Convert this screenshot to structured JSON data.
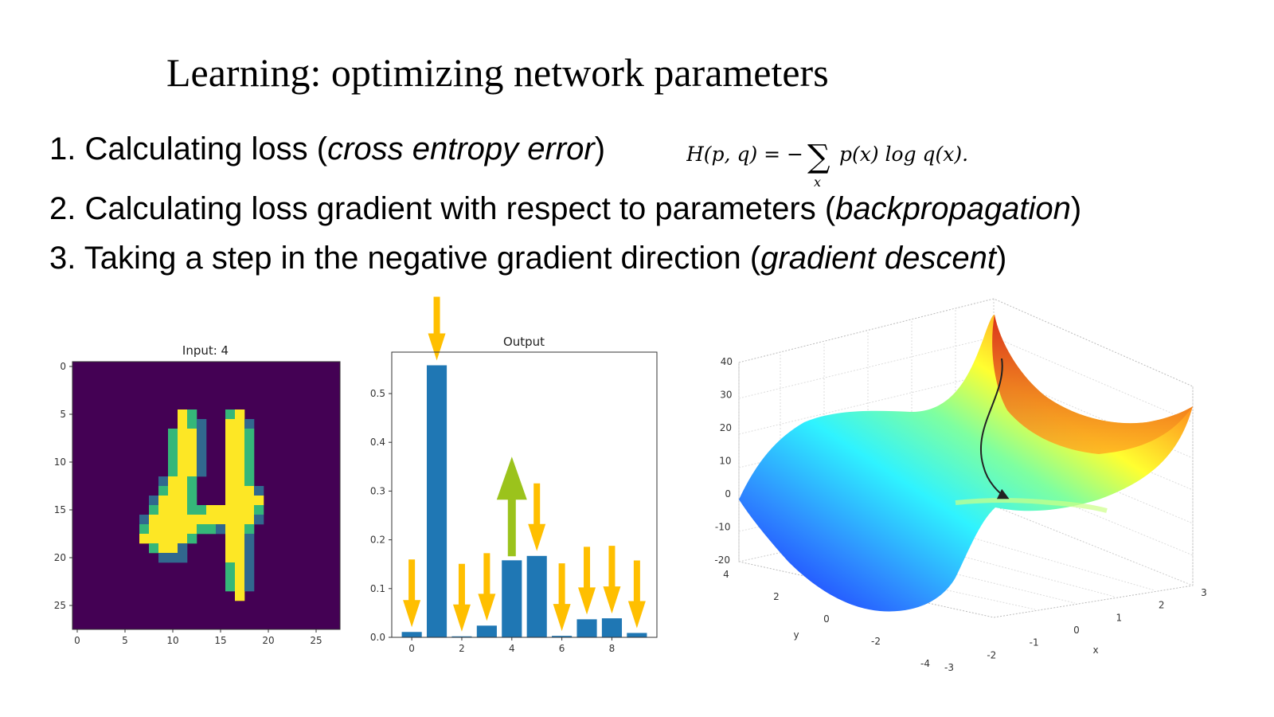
{
  "slide": {
    "title": "Learning: optimizing network parameters",
    "bullets": [
      {
        "num": "1. ",
        "pre": "Calculating loss (",
        "em": "cross entropy error",
        "post": ")"
      },
      {
        "num": "2. ",
        "pre": "Calculating loss gradient with respect to parameters (",
        "em": "backpropagation",
        "post": ")"
      },
      {
        "num": "3. ",
        "pre": "Taking a step in the negative gradient direction (",
        "em": "gradient descent",
        "post": ")"
      }
    ],
    "formula": {
      "lhs": "H(p, q) = −",
      "sum": "∑",
      "sub": "x",
      "rhs": "p(x)  log q(x)."
    }
  },
  "input_image": {
    "title": "Input: 4",
    "xticks": [
      "0",
      "5",
      "10",
      "15",
      "20",
      "25"
    ],
    "yticks": [
      "0",
      "5",
      "10",
      "15",
      "20",
      "25"
    ],
    "colors": {
      "background": "#440154",
      "stroke": "#fde725",
      "edge": "#35b779",
      "edge_dark": "#31688e"
    }
  },
  "chart_data": {
    "type": "bar",
    "title": "Output",
    "categories": [
      "0",
      "1",
      "2",
      "3",
      "4",
      "5",
      "6",
      "7",
      "8",
      "9"
    ],
    "values": [
      0.011,
      0.558,
      0.002,
      0.024,
      0.158,
      0.167,
      0.003,
      0.037,
      0.039,
      0.009
    ],
    "ylim": [
      0,
      0.585
    ],
    "xticks": [
      "0",
      "2",
      "4",
      "6",
      "8"
    ],
    "yticks": [
      "0.0",
      "0.1",
      "0.2",
      "0.3",
      "0.4",
      "0.5"
    ],
    "bar_color": "#1f77b4",
    "arrows": {
      "down_color": "#ffbf00",
      "up_color": "#9bc31c",
      "up_category": "4"
    }
  },
  "surface_plot": {
    "zticks": [
      "40",
      "30",
      "20",
      "10",
      "0",
      "-10",
      "-20"
    ],
    "yticks": [
      "4",
      "2",
      "0",
      "-2",
      "-4"
    ],
    "xticks": [
      "-3",
      "-2",
      "-1",
      "0",
      "1",
      "2",
      "3"
    ],
    "ylabel": "y",
    "xlabel": "x"
  }
}
